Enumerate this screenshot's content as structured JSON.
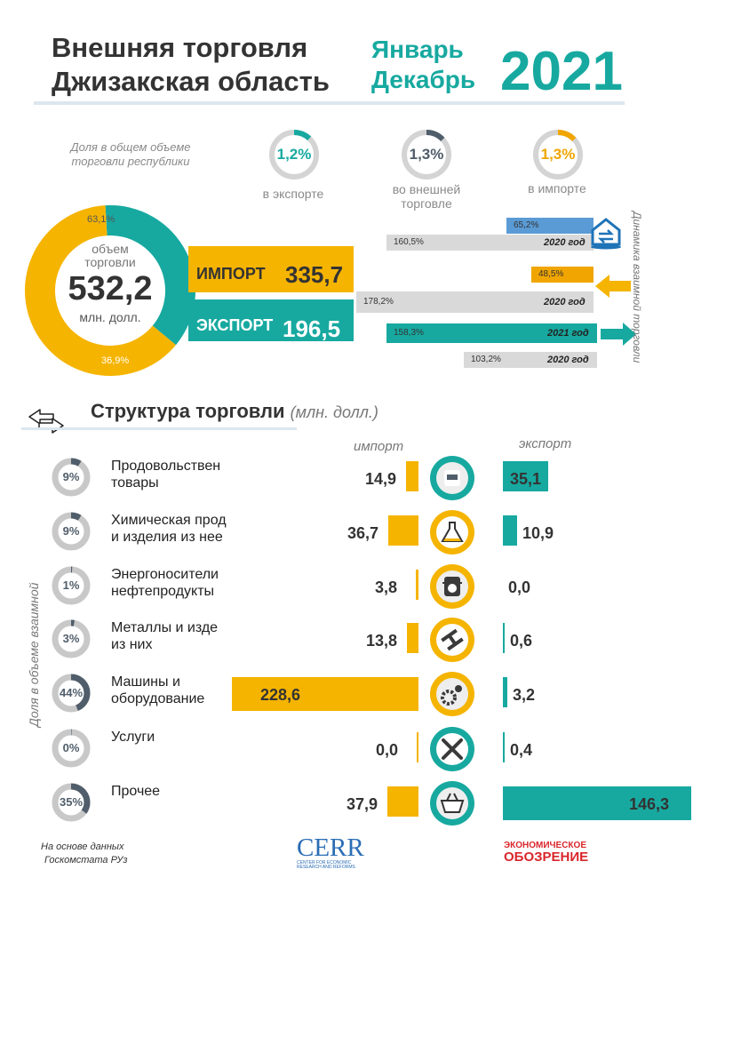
{
  "header": {
    "title_line1": "Внешняя торговля",
    "title_line2": "Джизакская область",
    "period_line1": "Январь",
    "period_line2": "Декабрь",
    "year": "2021"
  },
  "share": {
    "caption_line1": "Доля в общем объеме",
    "caption_line2": "торговли республики",
    "items": [
      {
        "value": "1,2%",
        "fraction": 0.012,
        "label_line1": "в экспорте",
        "label_line2": "",
        "color": "#17a9a0"
      },
      {
        "value": "1,3%",
        "fraction": 0.013,
        "label_line1": "во внешней",
        "label_line2": "торговле",
        "color": "#505d6a"
      },
      {
        "value": "1,3%",
        "fraction": 0.013,
        "label_line1": "в импорте",
        "label_line2": "",
        "color": "#f0a500"
      }
    ]
  },
  "total": {
    "label_line1": "объем",
    "label_line2": "торговли",
    "value": "532,2",
    "unit": "млн. долл.",
    "import_pct": "63,1%",
    "export_pct": "36,9%"
  },
  "import": {
    "label": "ИМПОРТ",
    "value": "335,7"
  },
  "export": {
    "label": "ЭКСПОРТ",
    "value": "196,5"
  },
  "dynamics": {
    "title": "Динамика взаимной торговли",
    "rows": [
      {
        "pct": "65,2%",
        "year": "",
        "percent": 65.2,
        "color": "#5b9bd5"
      },
      {
        "pct": "160,5%",
        "year": "2020 год",
        "percent": 160.5,
        "color": "#d9d9d9"
      },
      {
        "pct": "48,5%",
        "year": "",
        "percent": 48.5,
        "color": "#f0a500"
      },
      {
        "pct": "178,2%",
        "year": "2020 год",
        "percent": 178.2,
        "color": "#d9d9d9"
      },
      {
        "pct": "158,3%",
        "year": "2021 год",
        "percent": 158.3,
        "color": "#17a9a0"
      },
      {
        "pct": "103,2%",
        "year": "2020 год",
        "percent": 103.2,
        "color": "#d9d9d9"
      }
    ]
  },
  "structure": {
    "title": "Структура торговли",
    "unit": "(млн. долл.)",
    "import_head": "импорт",
    "export_head": "экспорт",
    "side_label": "Доля в объеме  взаимной",
    "icons": {
      "swap": "swap-arrows-icon",
      "exchange": "house-exchange-icon",
      "import_arrow": "arrow-left-icon",
      "export_arrow": "arrow-right-icon"
    }
  },
  "chart_data": {
    "type": "bar",
    "title": "Структура торговли",
    "unit": "(млн. долл.)",
    "categories": [
      {
        "line1": "Продовольствен",
        "line2": "товары",
        "share": "9%",
        "share_value": 9,
        "icon": "food-canister-icon"
      },
      {
        "line1": "Химическая прод",
        "line2": "и изделия из нее",
        "share": "9%",
        "share_value": 9,
        "icon": "flask-icon"
      },
      {
        "line1": "Энергоносители",
        "line2": "нефтепродукты",
        "share": "1%",
        "share_value": 1,
        "icon": "oil-barrel-icon"
      },
      {
        "line1": "Металлы и изде",
        "line2": "из них",
        "share": "3%",
        "share_value": 3,
        "icon": "steel-beam-icon"
      },
      {
        "line1": "Машины и",
        "line2": "оборудование",
        "share": "44%",
        "share_value": 44,
        "icon": "gears-icon"
      },
      {
        "line1": "Услуги",
        "line2": "",
        "share": "0%",
        "share_value": 0,
        "icon": "wrench-screwdriver-icon"
      },
      {
        "line1": "Прочее",
        "line2": "",
        "share": "35%",
        "share_value": 35,
        "icon": "basket-icon"
      }
    ],
    "series": [
      {
        "name": "импорт",
        "values": [
          14.9,
          36.7,
          3.8,
          13.8,
          228.6,
          0.0,
          37.9
        ],
        "labels": [
          "14,9",
          "36,7",
          "3,8",
          "13,8",
          "228,6",
          "0,0",
          "37,9"
        ],
        "color": "#f5b400"
      },
      {
        "name": "экспорт",
        "values": [
          35.1,
          10.9,
          0.0,
          0.6,
          3.2,
          0.4,
          146.3
        ],
        "labels": [
          "35,1",
          "10,9",
          "0,0",
          "0,6",
          "3,2",
          "0,4",
          "146,3"
        ],
        "color": "#17a9a0"
      }
    ]
  },
  "footer": {
    "source_line1": "На основе данных",
    "source_line2": "Госкомстата РУз",
    "cerr": "CERR",
    "cerr_sub": "CENTER FOR ECONOMIC RESEARCH AND REFORMS",
    "eo_line1": "ЭКОНОМИЧЕСКОЕ",
    "eo_line2": "ОБОЗРЕНИЕ"
  }
}
